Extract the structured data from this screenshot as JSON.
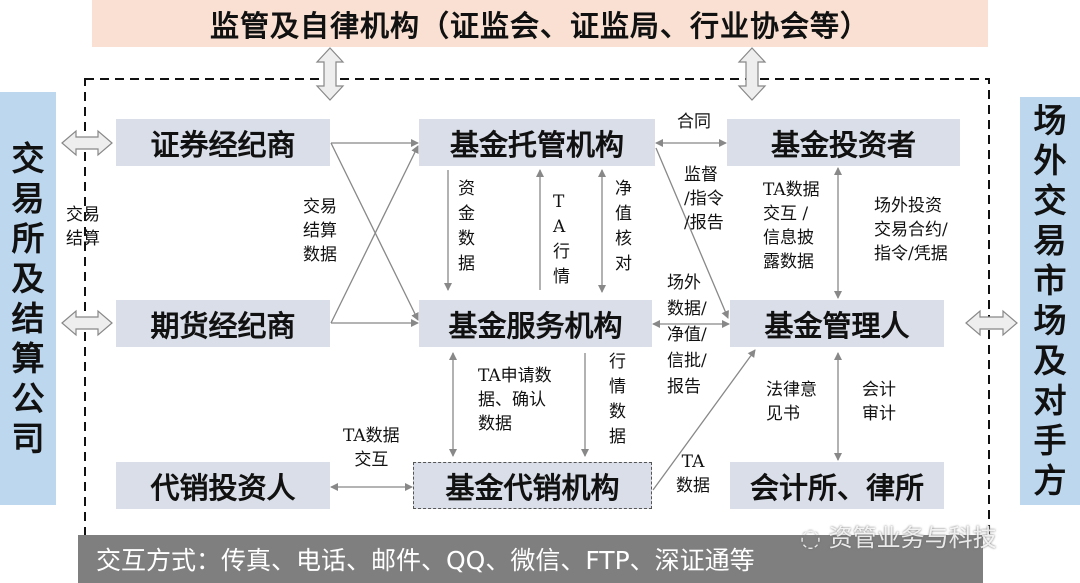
{
  "top_banner": "监管及自律机构（证监会、证监局、行业协会等）",
  "left_side": "交易所及结算公司",
  "right_side": "场外交易市场及对手方",
  "nodes": {
    "securities_broker": "证券经纪商",
    "custodian": "基金托管机构",
    "investor": "基金投资者",
    "futures_broker": "期货经纪商",
    "service": "基金服务机构",
    "manager": "基金管理人",
    "agency_investor": "代销投资人",
    "distributor": "基金代销机构",
    "accounting_law": "会计所、律所"
  },
  "labels": {
    "exchange_settlement": "交易\n结算",
    "trade_settlement_data": "交易\n结算\n数据",
    "fund_data": "资金数据",
    "ta_quotes": "TA行情",
    "nav_check": "净值核对",
    "contract": "合同",
    "supervision": "监督\n/指令\n/报告",
    "ta_disclosure": "TA数据\n交互 /\n信息披\n露数据",
    "otc_contracts": "场外投资\n交易合约/\n指令/凭据",
    "otc_data": "场外\n数据/\n净值/\n信批/\n报告",
    "ta_application": "TA申请数\n据、确认\n数据",
    "quote_data": "行情数据",
    "legal_opinion": "法律意\n见书",
    "audit": "会计\n审计",
    "ta_interaction": "TA数据\n交互",
    "ta_data": "TA\n数据"
  },
  "bottom_bar": "交互方式：传真、电话、邮件、QQ、微信、FTP、深证通等",
  "watermark": "资管业务与科技",
  "colors": {
    "banner": "#f9e0d2",
    "side": "#bdd7ee",
    "box": "#d9dee8",
    "bottom": "#7f7f7f"
  }
}
